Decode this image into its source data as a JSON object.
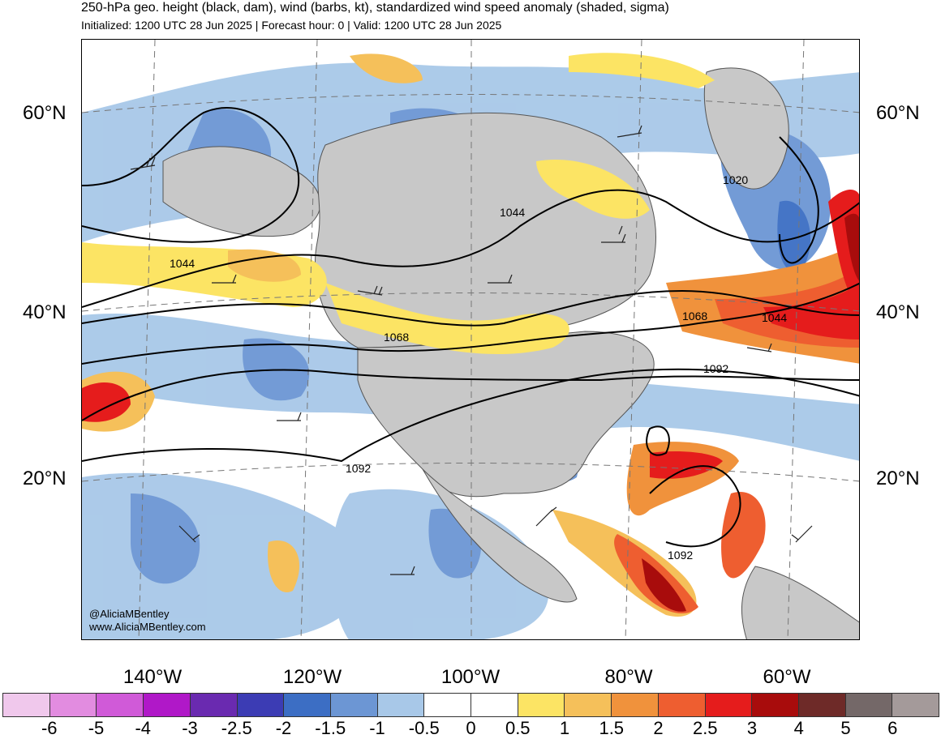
{
  "title": "250-hPa geo. height (black, dam), wind (barbs, kt), standardized wind speed anomaly (shaded, sigma)",
  "subtitle": "Initialized: 1200 UTC 28 Jun 2025 | Forecast hour: 0 | Valid: 1200 UTC 28 Jun 2025",
  "credit": {
    "handle": "@AliciaMBentley",
    "site": "www.AliciaMBentley.com"
  },
  "lat_labels": [
    "60°N",
    "40°N",
    "20°N"
  ],
  "lon_labels": [
    "140°W",
    "120°W",
    "100°W",
    "80°W",
    "60°W"
  ],
  "contour_labels": [
    "1020",
    "1044",
    "1044",
    "1044",
    "1068",
    "1068",
    "1092",
    "1092",
    "1092"
  ],
  "colorbar": {
    "labels": [
      "-6",
      "-5",
      "-4",
      "-3",
      "-2.5",
      "-2",
      "-1.5",
      "-1",
      "-0.5",
      "0",
      "0.5",
      "1",
      "1.5",
      "2",
      "2.5",
      "3",
      "4",
      "5",
      "6"
    ],
    "colors": [
      "#f0c8ec",
      "#e28ce0",
      "#d05ad8",
      "#b018c8",
      "#6a2ab0",
      "#3c3cb4",
      "#3c6ec4",
      "#6c96d4",
      "#a8c8e8",
      "#ffffff",
      "#ffffff",
      "#fce464",
      "#f5c05a",
      "#f0923c",
      "#ee5e30",
      "#e51c1c",
      "#a80c0c",
      "#6e2a28",
      "#746868",
      "#a49a9a"
    ]
  },
  "colors": {
    "land": "#c8c8c8",
    "contour": "#000000",
    "coast": "#555555"
  }
}
